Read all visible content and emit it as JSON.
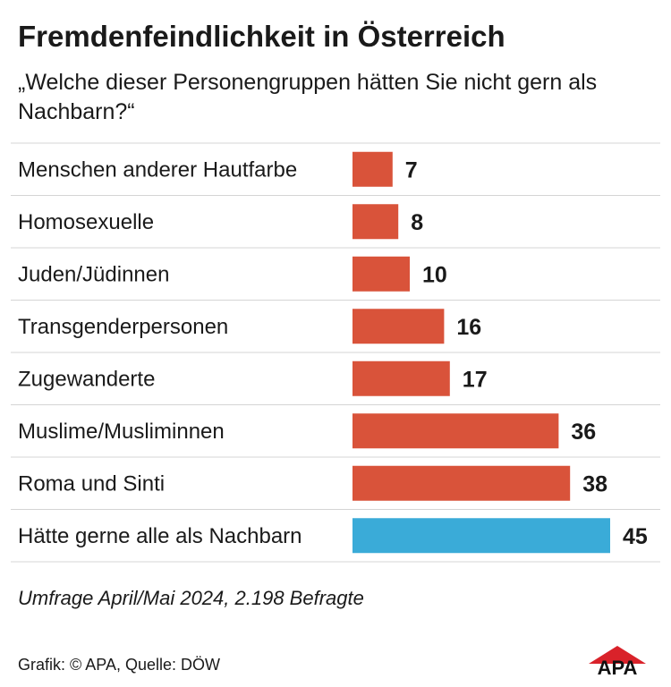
{
  "header": {
    "title": "Fremdenfeindlichkeit in Österreich",
    "subtitle": "„Welche dieser Personengruppen hätten Sie nicht gern als Nachbarn?“"
  },
  "chart_data": {
    "type": "bar",
    "orientation": "horizontal",
    "categories": [
      "Menschen anderer Hautfarbe",
      "Homosexuelle",
      "Juden/Jüdinnen",
      "Transgenderpersonen",
      "Zugewanderte",
      "Muslime/Musliminnen",
      "Roma und Sinti",
      "Hätte gerne alle als Nachbarn"
    ],
    "values": [
      7,
      8,
      10,
      16,
      17,
      36,
      38,
      45
    ],
    "value_labels": [
      "7",
      "8",
      "10",
      "16",
      "17",
      "36",
      "38",
      "45"
    ],
    "colors": [
      "#d9533a",
      "#d9533a",
      "#d9533a",
      "#d9533a",
      "#d9533a",
      "#d9533a",
      "#d9533a",
      "#3aabd8"
    ],
    "xlim": [
      0,
      45
    ],
    "grid": false
  },
  "footer": {
    "note": "Umfrage April/Mai 2024, 2.198 Befragte",
    "credit": "Grafik: © APA, Quelle: DÖW",
    "logo_text": "APA"
  },
  "colors": {
    "bar": "#d9533a",
    "highlight": "#3aabd8",
    "divider": "#d4d4d4",
    "logo": "#d9222a"
  }
}
